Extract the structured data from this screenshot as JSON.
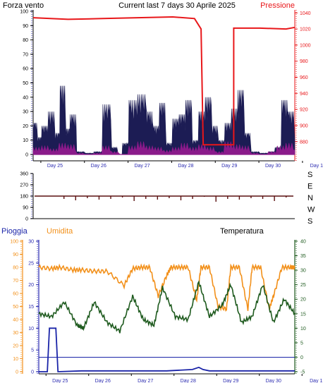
{
  "header": {
    "left_title": "Forza vento",
    "center_title": "Current last 7 days 30 Aprile 2025",
    "right_title": "Pressione"
  },
  "colors": {
    "wind_gust": "#1c1c54",
    "wind_mean": "#8a1a8a",
    "pressure": "#e8171a",
    "direction": "#5a1010",
    "rain": "#1a24a8",
    "humidity": "#f2901a",
    "temperature": "#1e5a1e",
    "axis_blue": "#2a2ab0",
    "axis_red": "#e8171a",
    "axis_orange": "#f2901a",
    "axis_green": "#1e5a1e"
  },
  "chart_data": [
    {
      "type": "area",
      "title": "Forza vento",
      "secondary_title": "Pressione",
      "categories": [
        "Day 25",
        "Day 26",
        "Day 27",
        "Day 28",
        "Day 29",
        "Day 30",
        "Day 1"
      ],
      "left_ticks": [
        "0",
        "10",
        "20",
        "30",
        "40",
        "50",
        "60",
        "70",
        "80",
        "90",
        "100"
      ],
      "right_ticks": [
        "880",
        "900",
        "920",
        "940",
        "960",
        "980",
        "1000",
        "1020",
        "1040"
      ],
      "ylim": [
        0,
        100
      ],
      "y2lim": [
        864,
        1042
      ],
      "series": [
        {
          "name": "Forza vento",
          "role": "gust",
          "axis": "left",
          "x": [
            0,
            0.1,
            0.2,
            0.35,
            0.5,
            0.62,
            0.75,
            0.85,
            1.0,
            1.2,
            1.4,
            1.6,
            1.8,
            1.95,
            2.05,
            2.2,
            2.4,
            2.6,
            2.75,
            2.9,
            3.05,
            3.2,
            3.35,
            3.5,
            3.65,
            3.8,
            3.95,
            4.1,
            4.25,
            4.4,
            4.55,
            4.7,
            4.85,
            5.0,
            5.2,
            5.4,
            5.55,
            5.7,
            5.85,
            6.0
          ],
          "values": [
            22,
            12,
            20,
            30,
            15,
            48,
            18,
            28,
            2,
            1,
            2,
            35,
            5,
            0,
            8,
            38,
            42,
            30,
            20,
            36,
            8,
            25,
            28,
            38,
            10,
            30,
            40,
            20,
            10,
            22,
            32,
            45,
            15,
            2,
            1,
            2,
            5,
            38,
            30,
            10
          ]
        },
        {
          "name": "",
          "role": "mean",
          "axis": "left",
          "x": [
            0,
            0.2,
            0.4,
            0.6,
            0.8,
            1.0,
            1.2,
            1.4,
            1.6,
            1.8,
            2.0,
            2.2,
            2.4,
            2.6,
            2.8,
            3.0,
            3.2,
            3.4,
            3.6,
            3.8,
            4.0,
            4.2,
            4.4,
            4.6,
            4.8,
            5.0,
            5.2,
            5.4,
            5.6,
            5.8,
            6.0
          ],
          "values": [
            5,
            6,
            4,
            8,
            7,
            1,
            0,
            1,
            6,
            2,
            0,
            6,
            9,
            6,
            5,
            3,
            5,
            8,
            5,
            7,
            5,
            2,
            9,
            7,
            6,
            1,
            0,
            2,
            6,
            8,
            3
          ]
        },
        {
          "name": "Pressione",
          "axis": "right",
          "x": [
            0,
            0.8,
            1.6,
            2.4,
            3.2,
            3.7,
            3.85,
            3.9,
            3.9,
            4.6,
            4.6,
            5.2,
            5.8,
            6.0
          ],
          "values": [
            1034,
            1032,
            1033,
            1034,
            1035,
            1033,
            1020,
            876,
            876,
            876,
            1021,
            1021,
            1020,
            1022
          ]
        }
      ]
    },
    {
      "type": "scatter",
      "title": "",
      "left_ticks": [
        "0",
        "90",
        "180",
        "270",
        "360"
      ],
      "right_labels": [
        "S",
        "E",
        "N",
        "W",
        "S"
      ],
      "ylim": [
        0,
        360
      ],
      "series": [
        {
          "name": "",
          "values": [
            180,
            178,
            181,
            179,
            180,
            182,
            177,
            180,
            179,
            181,
            178,
            180,
            183,
            176,
            180,
            179,
            181,
            180,
            177,
            182
          ]
        }
      ]
    },
    {
      "type": "line",
      "titles": [
        "Pioggia",
        "Umidita",
        "Temperatura"
      ],
      "categories": [
        "Day 25",
        "Day 26",
        "Day 27",
        "Day 28",
        "Day 29",
        "Day 30",
        "Day 1"
      ],
      "left_ticks": [
        "0",
        "10",
        "20",
        "30",
        "40",
        "50",
        "60",
        "70",
        "80",
        "90",
        "100"
      ],
      "rain_ticks": [
        "0",
        "5",
        "10",
        "15",
        "20",
        "25",
        "30"
      ],
      "right_ticks": [
        "-5",
        "0",
        "5",
        "10",
        "15",
        "20",
        "25",
        "30",
        "35",
        "40"
      ],
      "series": [
        {
          "name": "Umidita",
          "axis": "humidity",
          "ylim": [
            0,
            100
          ],
          "x": [
            0,
            0.3,
            0.5,
            0.8,
            1.0,
            1.3,
            1.6,
            2.0,
            2.2,
            2.4,
            2.6,
            2.8,
            3.0,
            3.1,
            3.3,
            3.5,
            3.7,
            3.8,
            4.0,
            4.2,
            4.4,
            4.5,
            4.7,
            4.9,
            5.0,
            5.2,
            5.4,
            5.5,
            5.7,
            5.9,
            6.0
          ],
          "values": [
            80,
            79,
            80,
            78,
            78,
            77,
            77,
            66,
            79,
            80,
            80,
            58,
            74,
            80,
            80,
            80,
            55,
            80,
            80,
            50,
            48,
            80,
            80,
            48,
            80,
            80,
            48,
            58,
            80,
            80,
            80
          ]
        },
        {
          "name": "Umidita",
          "axis": "rain",
          "ylim": [
            0,
            30
          ],
          "x": [
            0,
            0.2,
            0.25,
            0.4,
            0.45,
            1.0,
            2.0,
            3.0,
            3.6,
            3.75,
            3.85,
            4.0,
            5.0,
            6.0
          ],
          "values": [
            0,
            0,
            10,
            10,
            0,
            0.2,
            0.2,
            0.2,
            0.5,
            1.0,
            0.5,
            0.2,
            0.2,
            0.2
          ]
        },
        {
          "name": "Temperatura",
          "axis": "temperature",
          "ylim": [
            -5,
            40
          ],
          "x": [
            0,
            0.3,
            0.6,
            0.9,
            1.05,
            1.3,
            1.6,
            1.9,
            2.2,
            2.45,
            2.7,
            2.9,
            3.2,
            3.5,
            3.75,
            4.0,
            4.3,
            4.5,
            4.75,
            5.0,
            5.25,
            5.5,
            5.75,
            6.0
          ],
          "values": [
            15,
            14,
            19,
            11,
            10,
            19,
            12,
            9,
            21,
            13,
            11,
            24,
            14,
            13,
            26,
            14,
            18,
            25,
            12,
            14,
            25,
            12,
            20,
            15
          ]
        }
      ]
    }
  ]
}
